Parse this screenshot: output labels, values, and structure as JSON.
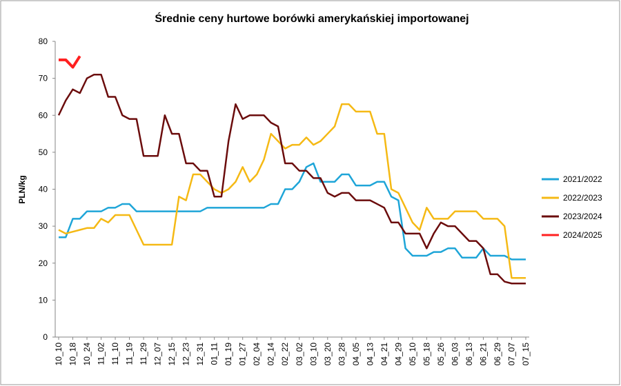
{
  "chart_data": {
    "type": "line",
    "title": "Średnie ceny hurtowe borówki amerykańskiej importowanej",
    "y_label": "PLN/kg",
    "categories": [
      "10_10",
      null,
      "10_18",
      null,
      "10_24",
      null,
      "11_02",
      null,
      "11_10",
      null,
      "11_19",
      null,
      "11_29",
      null,
      "12_07",
      null,
      "12_15",
      null,
      "12_23",
      null,
      "12_31",
      null,
      "01_11",
      null,
      "01_19",
      null,
      "01_27",
      null,
      "02_04",
      null,
      "02_14",
      null,
      "02_22",
      null,
      "03_02",
      null,
      "03_10",
      null,
      "03_20",
      null,
      "03_28",
      null,
      "04_05",
      null,
      "04_13",
      null,
      "04_21",
      null,
      "04_29",
      null,
      "05_10",
      null,
      "05_18",
      null,
      "05_26",
      null,
      "06_03",
      null,
      "06_13",
      null,
      "06_21",
      null,
      "06_29",
      null,
      "07_07",
      null,
      "07_15"
    ],
    "series": [
      {
        "name": "2021/2022",
        "color": "#1ea5d8",
        "values": [
          27,
          27,
          32,
          32,
          34,
          34,
          34,
          35,
          35,
          36,
          36,
          34,
          34,
          34,
          34,
          34,
          34,
          34,
          34,
          34,
          34,
          35,
          35,
          35,
          35,
          35,
          35,
          35,
          35,
          35,
          36,
          36,
          40,
          40,
          42,
          46,
          47,
          42,
          42,
          42,
          44,
          44,
          41,
          41,
          41,
          42,
          42,
          38,
          37,
          24,
          22,
          22,
          22,
          23,
          23,
          24,
          24,
          21.5,
          21.5,
          21.5,
          24,
          22,
          22,
          22,
          21,
          21,
          21
        ]
      },
      {
        "name": "2022/2023",
        "color": "#f5b914",
        "values": [
          29,
          28,
          28.5,
          29,
          29.5,
          29.5,
          32,
          31,
          33,
          33,
          33,
          29,
          25,
          25,
          25,
          25,
          25,
          38,
          37,
          44,
          44,
          42,
          40,
          39,
          40,
          42,
          46,
          42,
          44,
          48,
          55,
          53,
          51,
          52,
          52,
          54,
          52,
          53,
          55,
          57,
          63,
          63,
          61,
          61,
          61,
          55,
          55,
          40,
          39,
          35,
          31,
          29,
          35,
          32,
          32,
          32,
          34,
          34,
          34,
          34,
          32,
          32,
          32,
          30,
          16,
          16,
          16
        ]
      },
      {
        "name": "2023/2024",
        "color": "#6b0c0c",
        "values": [
          60,
          64,
          67,
          66,
          70,
          71,
          71,
          65,
          65,
          60,
          59,
          59,
          49,
          49,
          49,
          60,
          55,
          55,
          47,
          47,
          45,
          45,
          38,
          38,
          53,
          63,
          59,
          60,
          60,
          60,
          58,
          57,
          47,
          47,
          45,
          45,
          43,
          43,
          39,
          38,
          39,
          39,
          37,
          37,
          37,
          36,
          35,
          31,
          31,
          28,
          28,
          28,
          24,
          28,
          31,
          30,
          30,
          28,
          26,
          26,
          24,
          17,
          17,
          15,
          14.5,
          14.5,
          14.5
        ]
      },
      {
        "name": "2024/2025",
        "color": "#ff2020",
        "values": [
          75,
          75,
          73,
          76,
          null,
          null,
          null,
          null,
          null,
          null,
          null,
          null,
          null,
          null,
          null,
          null,
          null,
          null,
          null,
          null,
          null,
          null,
          null,
          null,
          null,
          null,
          null,
          null,
          null,
          null,
          null,
          null,
          null,
          null,
          null,
          null,
          null,
          null,
          null,
          null,
          null,
          null,
          null,
          null,
          null,
          null,
          null,
          null,
          null,
          null,
          null,
          null,
          null,
          null,
          null,
          null,
          null,
          null,
          null,
          null,
          null,
          null,
          null,
          null,
          null,
          null,
          null
        ]
      }
    ],
    "ylim": [
      0,
      80
    ],
    "yticks": [
      0,
      10,
      20,
      30,
      40,
      50,
      60,
      70,
      80
    ],
    "grid": false,
    "legend": "right"
  }
}
